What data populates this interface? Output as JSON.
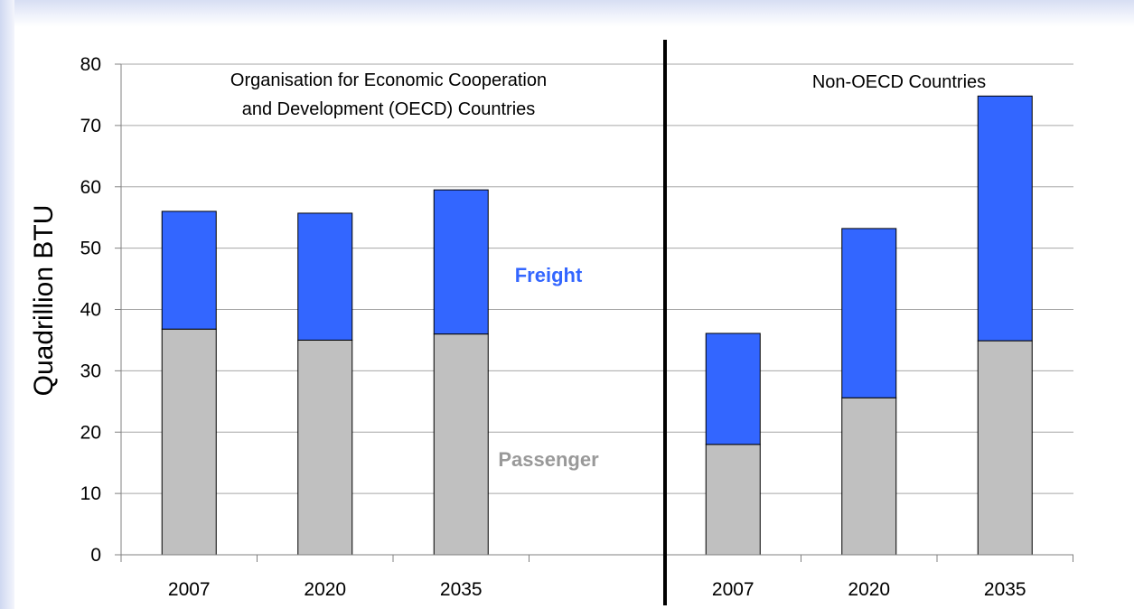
{
  "chart_data": {
    "type": "bar",
    "stacked": true,
    "ylabel": "Quadrillion BTU",
    "ylim": [
      0,
      80
    ],
    "yticks": [
      0,
      10,
      20,
      30,
      40,
      50,
      60,
      70,
      80
    ],
    "grid": true,
    "groups": [
      {
        "label": "Organisation for Economic Cooperation and Development (OECD) Countries",
        "label_lines": [
          "Organisation for Economic Cooperation",
          "and Development (OECD) Countries"
        ],
        "categories": [
          "2007",
          "2020",
          "2035"
        ]
      },
      {
        "label": "Non-OECD Countries",
        "label_lines": [
          "Non-OECD Countries"
        ],
        "categories": [
          "2007",
          "2020",
          "2035"
        ]
      }
    ],
    "series": [
      {
        "name": "Passenger",
        "color": "#c0c0c0",
        "label_color": "#999999",
        "values": [
          [
            36.8,
            35.0,
            36.0
          ],
          [
            18.0,
            25.6,
            34.9
          ]
        ]
      },
      {
        "name": "Freight",
        "color": "#3366ff",
        "label_color": "#3366ff",
        "values": [
          [
            19.2,
            20.7,
            23.5
          ],
          [
            18.1,
            27.6,
            39.9
          ]
        ]
      }
    ]
  }
}
